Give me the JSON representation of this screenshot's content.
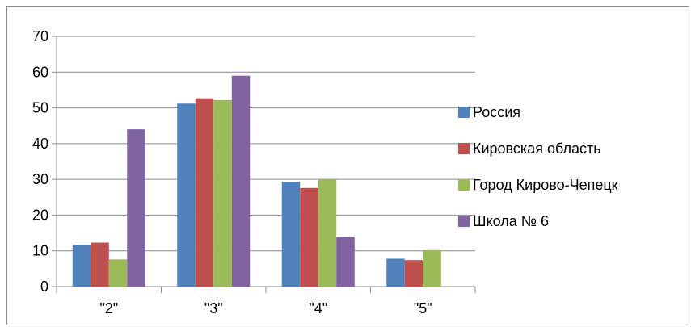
{
  "chart_data": {
    "type": "bar",
    "categories": [
      "\"2\"",
      "\"3\"",
      "\"4\"",
      "\"5\""
    ],
    "series": [
      {
        "name": "Россия",
        "color": "#4F81BD",
        "values": [
          11.7,
          51.2,
          29.3,
          7.8
        ]
      },
      {
        "name": "Кировская область",
        "color": "#C0504D",
        "values": [
          12.3,
          52.7,
          27.6,
          7.4
        ]
      },
      {
        "name": "Город Кирово-Чепецк",
        "color": "#9BBB59",
        "values": [
          7.6,
          52.2,
          30.0,
          10.2
        ]
      },
      {
        "name": "Школа № 6",
        "color": "#8064A2",
        "values": [
          44.0,
          59.0,
          14.0,
          0
        ]
      }
    ],
    "y_ticks": [
      "0",
      "10",
      "20",
      "30",
      "40",
      "50",
      "60",
      "70"
    ],
    "ylim": [
      0,
      70
    ],
    "grid": true,
    "legend_position": "right",
    "title": "",
    "xlabel": "",
    "ylabel": ""
  }
}
